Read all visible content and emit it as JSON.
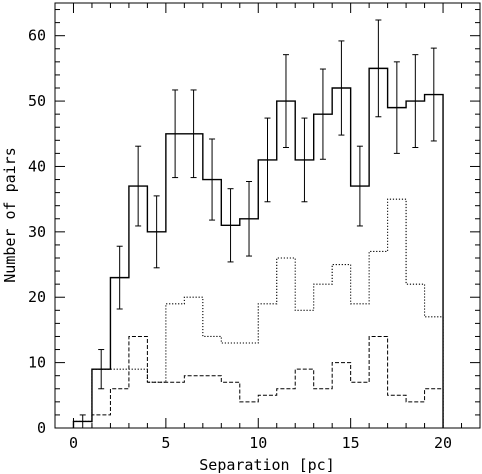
{
  "chart_data": {
    "type": "step-histogram",
    "title": "",
    "xlabel": "Separation [pc]",
    "ylabel": "Number of pairs",
    "xlim": [
      -1,
      22
    ],
    "ylim": [
      0,
      65
    ],
    "xticks": [
      0,
      5,
      10,
      15,
      20
    ],
    "yticks": [
      0,
      10,
      20,
      30,
      40,
      50,
      60
    ],
    "grid": false,
    "legend": "none",
    "bin_width": 1,
    "bin_starts": [
      0,
      1,
      2,
      3,
      4,
      5,
      6,
      7,
      8,
      9,
      10,
      11,
      12,
      13,
      14,
      15,
      16,
      17,
      18,
      19
    ],
    "series": [
      {
        "line_style": "solid",
        "values": [
          1,
          9,
          23,
          37,
          30,
          45,
          45,
          38,
          31,
          32,
          41,
          50,
          41,
          48,
          52,
          37,
          55,
          49,
          50,
          51
        ],
        "errors": [
          1,
          3,
          4.8,
          6.1,
          5.5,
          6.7,
          6.7,
          6.2,
          5.6,
          5.7,
          6.4,
          7.1,
          6.4,
          6.9,
          7.2,
          6.1,
          7.4,
          7,
          7.1,
          7.1
        ]
      },
      {
        "line_style": "dotted",
        "values": [
          1,
          9,
          9,
          9,
          7,
          19,
          20,
          14,
          13,
          13,
          19,
          26,
          18,
          22,
          25,
          19,
          27,
          35,
          22,
          17
        ]
      },
      {
        "line_style": "dashed",
        "values": [
          0,
          2,
          6,
          14,
          7,
          7,
          8,
          8,
          7,
          4,
          5,
          6,
          9,
          6,
          10,
          7,
          14,
          5,
          4,
          6
        ]
      }
    ]
  }
}
